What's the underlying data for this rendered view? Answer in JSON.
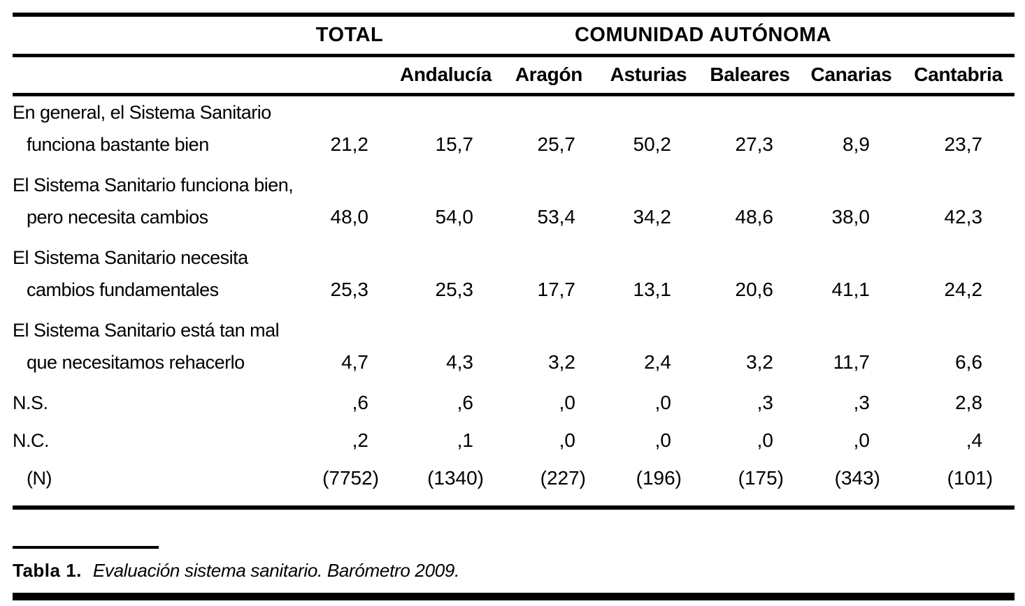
{
  "table": {
    "group_headers": {
      "total": "TOTAL",
      "comunidad": "COMUNIDAD AUTÓNOMA"
    },
    "columns": [
      "Andalucía",
      "Aragón",
      "Asturias",
      "Baleares",
      "Canarias",
      "Cantabria"
    ],
    "rows": [
      {
        "label_line1": "En general, el Sistema Sanitario",
        "label_line2": "funciona bastante bien",
        "values": [
          "21,2",
          "15,7",
          "25,7",
          "50,2",
          "27,3",
          "8,9",
          "23,7"
        ]
      },
      {
        "label_line1": "El Sistema Sanitario funciona bien,",
        "label_line2": "pero necesita cambios",
        "values": [
          "48,0",
          "54,0",
          "53,4",
          "34,2",
          "48,6",
          "38,0",
          "42,3"
        ]
      },
      {
        "label_line1": "El Sistema Sanitario necesita",
        "label_line2": "cambios fundamentales",
        "values": [
          "25,3",
          "25,3",
          "17,7",
          "13,1",
          "20,6",
          "41,1",
          "24,2"
        ]
      },
      {
        "label_line1": "El Sistema Sanitario está tan mal",
        "label_line2": "que necesitamos rehacerlo",
        "values": [
          "4,7",
          "4,3",
          "3,2",
          "2,4",
          "3,2",
          "11,7",
          "6,6"
        ]
      },
      {
        "label": "N.S.",
        "values": [
          ",6",
          ",6",
          ",0",
          ",0",
          ",3",
          ",3",
          "2,8"
        ]
      },
      {
        "label": "N.C.",
        "values": [
          ",2",
          ",1",
          ",0",
          ",0",
          ",0",
          ",0",
          ",4"
        ]
      },
      {
        "label": "(N)",
        "values": [
          "(7752)",
          "(1340)",
          "(227)",
          "(196)",
          "(175)",
          "(343)",
          "(101)"
        ]
      }
    ],
    "caption": {
      "label": "Tabla 1.",
      "text": "Evaluación sistema sanitario. Barómetro 2009."
    },
    "colors": {
      "text": "#000000",
      "background": "#ffffff"
    }
  }
}
